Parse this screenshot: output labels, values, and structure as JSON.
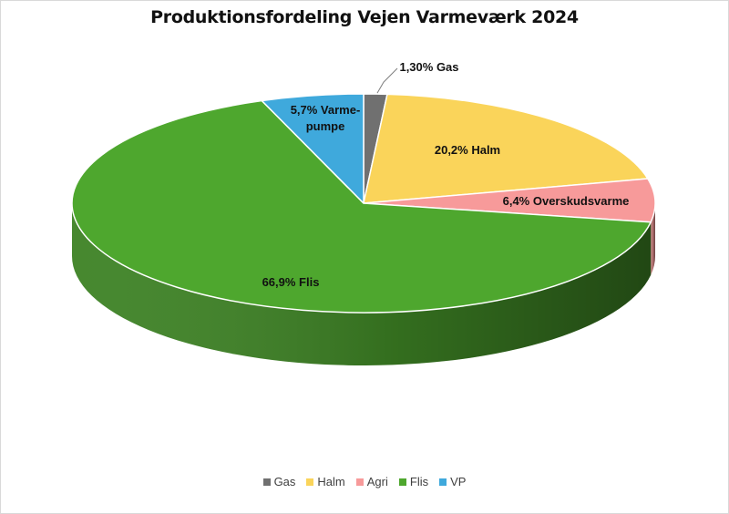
{
  "chart_data": {
    "type": "pie",
    "title": "Produktionsfordeling Vejen Varmeværk 2024",
    "slices": [
      {
        "legend": "Gas",
        "value": 1.3,
        "color": "#707070",
        "label_lines": [
          "1,30% Gas"
        ]
      },
      {
        "legend": "Halm",
        "value": 20.2,
        "color": "#fad45a",
        "label_lines": [
          "20,2% Halm"
        ]
      },
      {
        "legend": "Agri",
        "value": 6.4,
        "color": "#f79a9a",
        "label_lines": [
          "6,4% Overskudsvarme"
        ]
      },
      {
        "legend": "Flis",
        "value": 66.9,
        "color": "#4ea72e",
        "label_lines": [
          "66,9% Flis"
        ]
      },
      {
        "legend": "VP",
        "value": 5.7,
        "color": "#3fa9dc",
        "label_lines": [
          "5,7% Varme-",
          "pumpe"
        ]
      }
    ],
    "legend_position": "bottom",
    "style": "3d"
  }
}
